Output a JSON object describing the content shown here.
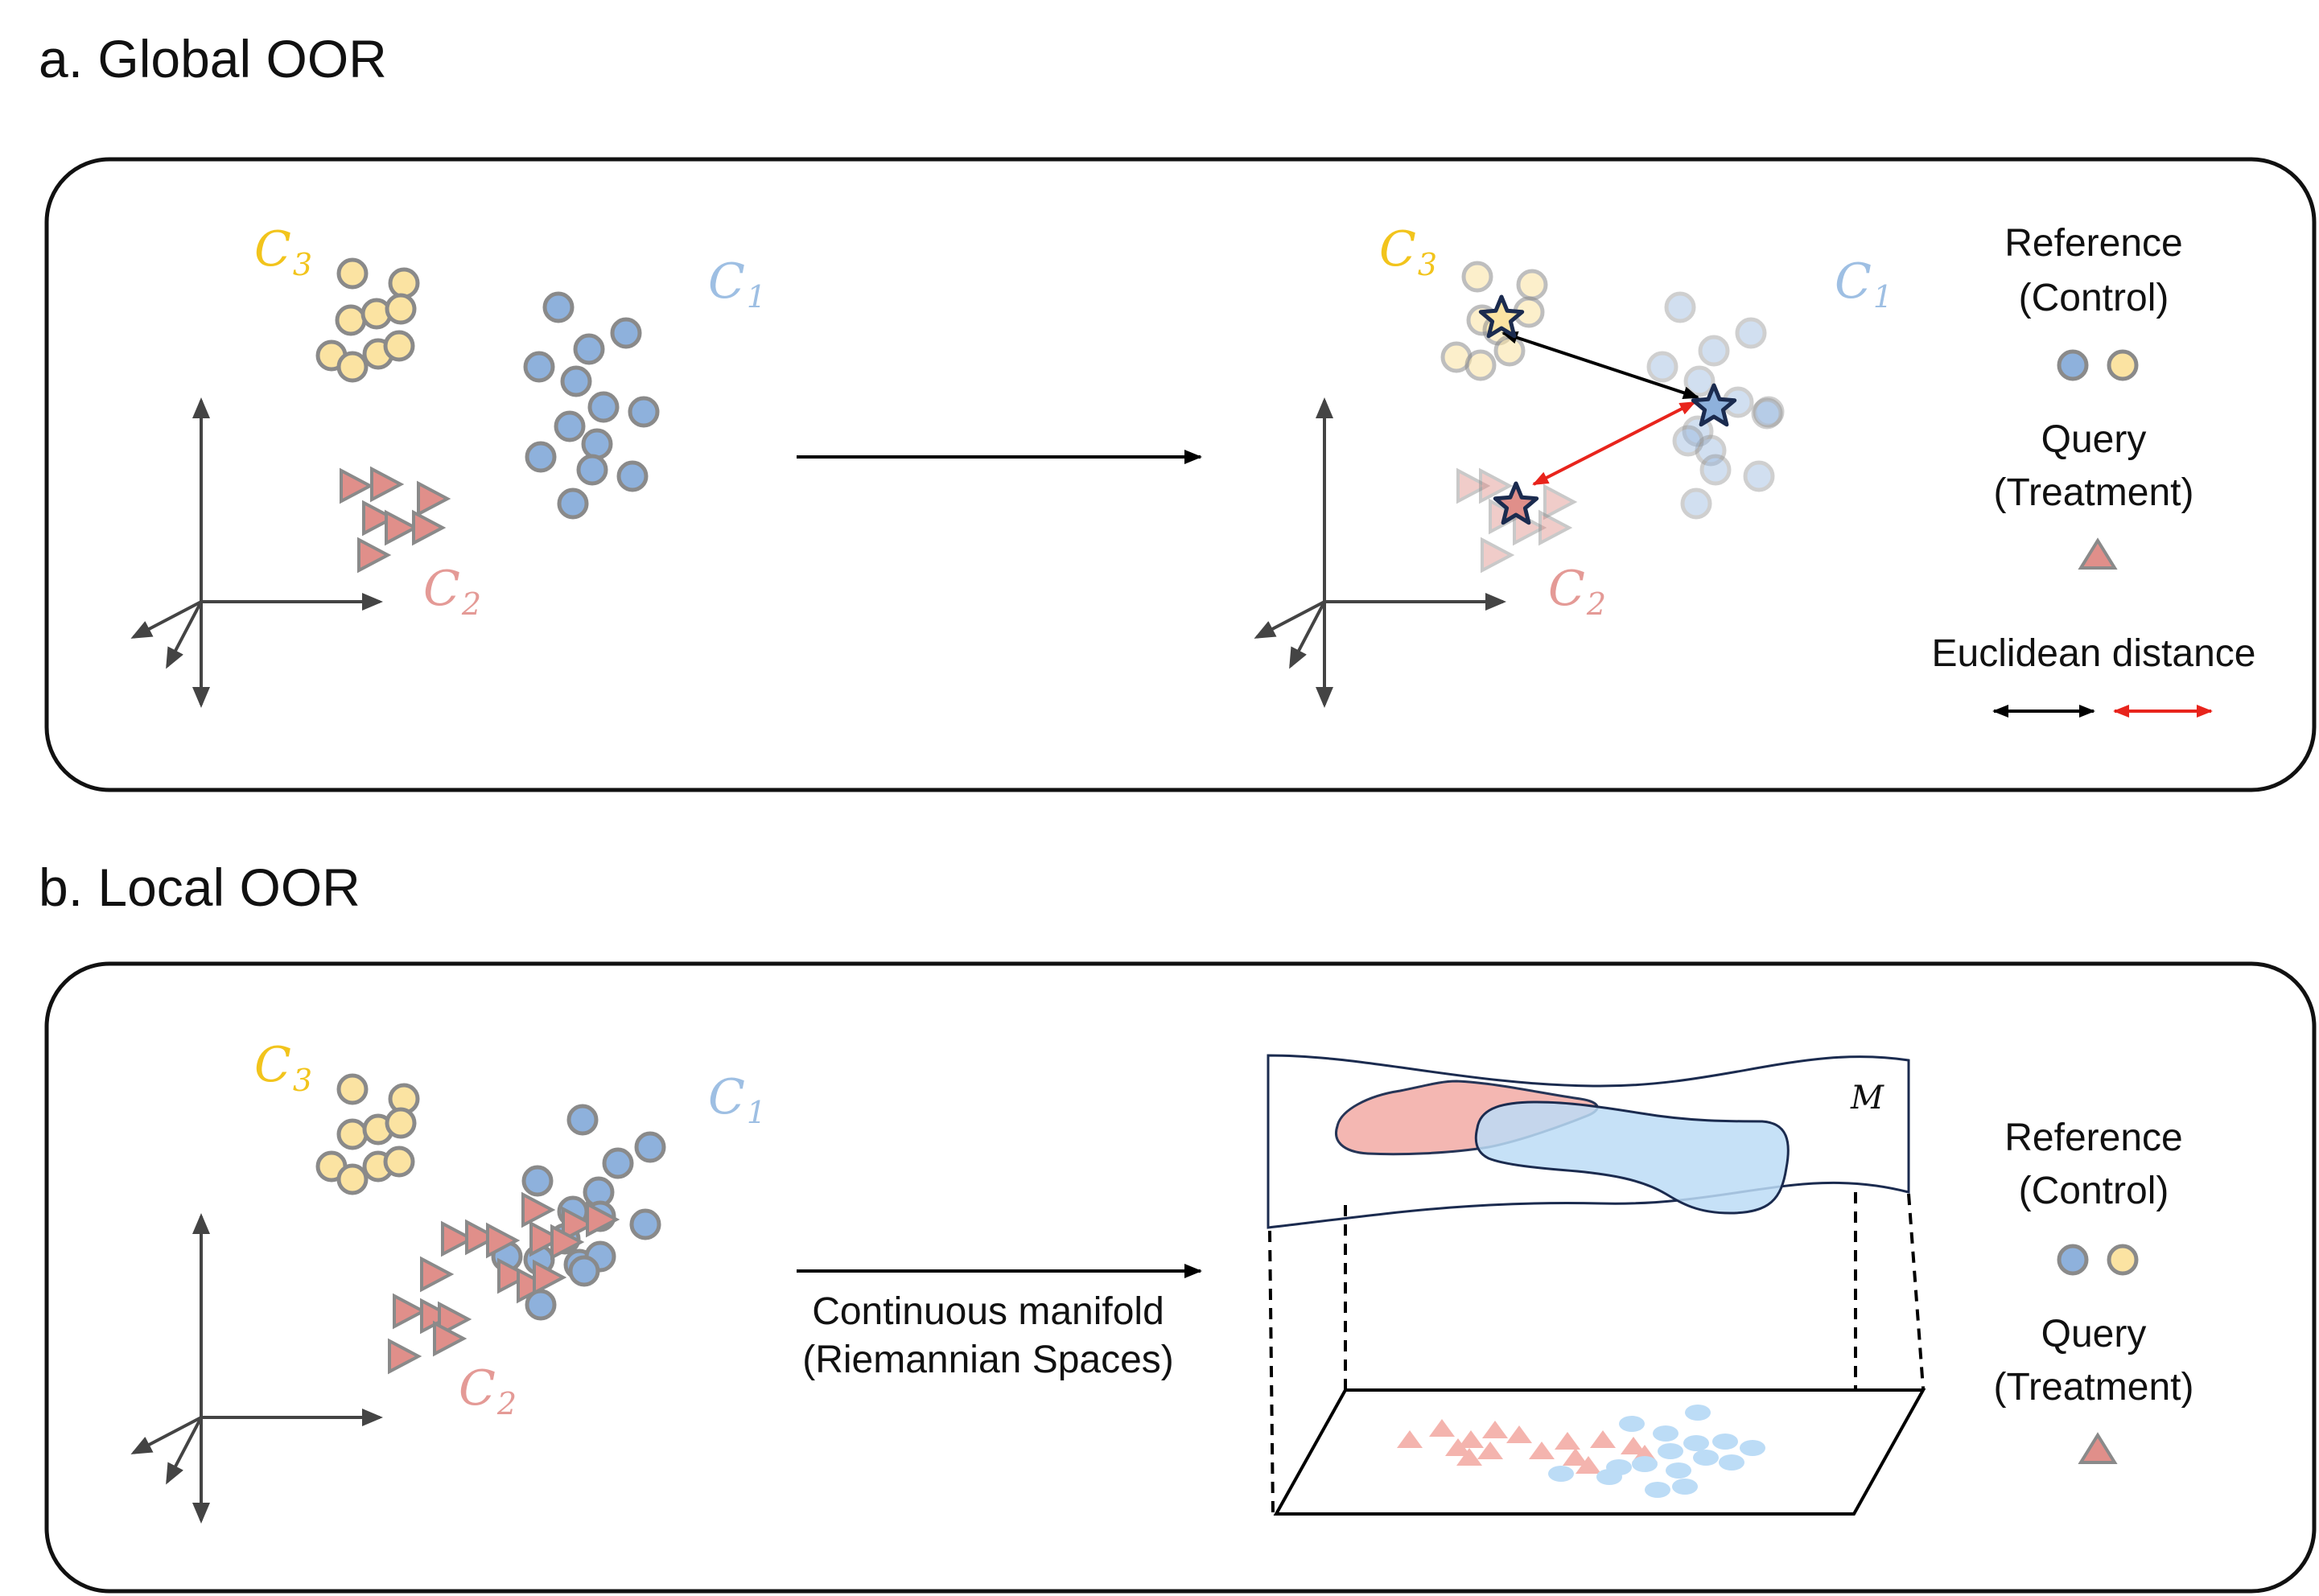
{
  "colors": {
    "c1": "#9ebfe3",
    "c2": "#e49a96",
    "c3": "#f2c41c",
    "blue_point": "#8eb1dc",
    "yellow_point": "#fbe3a2",
    "red_triangle": "#e08f8a",
    "outline_gray": "#8a8a8a",
    "axis": "#444444",
    "red_arrow": "#e8241c",
    "star_outline": "#1b2b4f",
    "manifold_red": "#f4b4ae",
    "manifold_blue": "#bcdcf6"
  },
  "panel_a": {
    "title": "a. Global OOR",
    "cluster_labels": {
      "c1": {
        "letter": "C",
        "sub": "1"
      },
      "c2": {
        "letter": "C",
        "sub": "2"
      },
      "c3": {
        "letter": "C",
        "sub": "3"
      }
    },
    "legend": {
      "reference": "Reference",
      "control": "(Control)",
      "query": "Query",
      "treatment": "(Treatment)",
      "distance": "Euclidean distance"
    }
  },
  "panel_b": {
    "title": "b. Local OOR",
    "cluster_labels": {
      "c1": {
        "letter": "C",
        "sub": "1"
      },
      "c2": {
        "letter": "C",
        "sub": "2"
      },
      "c3": {
        "letter": "C",
        "sub": "3"
      }
    },
    "arrow_caption_line1": "Continuous manifold",
    "arrow_caption_line2": "(Riemannian Spaces)",
    "manifold_symbol": "M",
    "legend": {
      "reference": "Reference",
      "control": "(Control)",
      "query": "Query",
      "treatment": "(Treatment)"
    }
  }
}
